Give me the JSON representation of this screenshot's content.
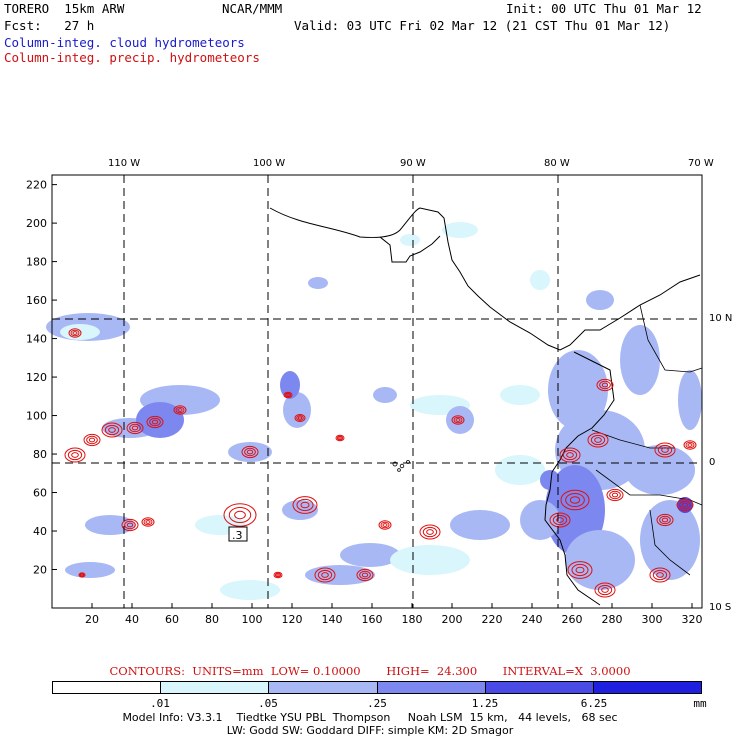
{
  "header": {
    "model": "TORERO  15km ARW",
    "org": "NCAR/MMM",
    "init": "Init: 00 UTC Thu 01 Mar 12",
    "fcst": "Fcst:   27 h",
    "valid": "Valid: 03 UTC Fri 02 Mar 12 (21 CST Thu 01 Mar 12)",
    "field1": "Column-integ. cloud hydrometeors",
    "field2": "Column-integ. precip. hydrometeors"
  },
  "axes": {
    "top_lon_labels": [
      "110 W",
      "100 W",
      "90 W",
      "80 W",
      "70 W"
    ],
    "right_lat_labels": [
      "10 N",
      "0",
      "10 S"
    ],
    "x_ticks": [
      "20",
      "40",
      "60",
      "80",
      "100",
      "120",
      "140",
      "160",
      "180",
      "200",
      "220",
      "240",
      "260",
      "280",
      "300",
      "320"
    ],
    "y_ticks": [
      "20",
      "40",
      "60",
      "80",
      "100",
      "120",
      "140",
      "160",
      "180",
      "200",
      "220"
    ]
  },
  "annotations": {
    "low_box": ".3"
  },
  "contours_line": "CONTOURS:  UNITS=mm  LOW= 0.10000       HIGH=  24.300       INTERVAL=X  3.0000",
  "legend": {
    "colors": [
      "#ffffff",
      "#d8f6fb",
      "#a8b8f4",
      "#7c88ef",
      "#4a4ae6",
      "#1f1fe0"
    ],
    "labels": [
      ".01",
      ".05",
      ".25",
      "1.25",
      "6.25"
    ],
    "unit": "mm"
  },
  "footer": {
    "line1": "Model Info: V3.3.1    Tiedtke YSU PBL  Thompson     Noah LSM  15 km,   44 levels,   68 sec",
    "line2": "LW: Godd SW: Goddard DIFF: simple KM: 2D Smagor"
  }
}
